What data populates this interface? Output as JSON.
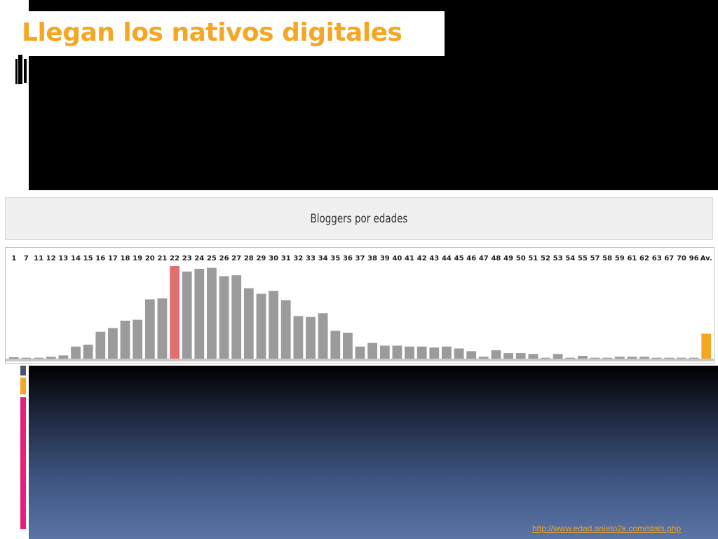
{
  "slide": {
    "title": "Llegan los nativos digitales",
    "source_link": "http://www.edad.anieto2k.com/stats.php",
    "colors": {
      "title": "#F5A623",
      "bar": "#9b9b9b",
      "highlight_bar": "#E07070",
      "average_bar": "#F5A623"
    }
  },
  "chart_data": {
    "type": "bar",
    "title": "Bloggers por edades",
    "xlabel": "",
    "ylabel": "",
    "grid": false,
    "legend": "none",
    "ylim": [
      0,
      100
    ],
    "highlight_category": "22",
    "average_category": "Av.",
    "categories": [
      "1",
      "7",
      "11",
      "12",
      "13",
      "14",
      "15",
      "16",
      "17",
      "18",
      "19",
      "20",
      "21",
      "22",
      "23",
      "24",
      "25",
      "26",
      "27",
      "28",
      "29",
      "30",
      "31",
      "32",
      "33",
      "34",
      "35",
      "36",
      "37",
      "38",
      "39",
      "40",
      "41",
      "42",
      "43",
      "44",
      "45",
      "46",
      "47",
      "48",
      "49",
      "50",
      "51",
      "52",
      "53",
      "54",
      "55",
      "57",
      "58",
      "59",
      "61",
      "62",
      "63",
      "67",
      "70",
      "96",
      "Av."
    ],
    "values": [
      1.5,
      1,
      1,
      2,
      3.5,
      13,
      15,
      29,
      33,
      41,
      42,
      64,
      65,
      100,
      94,
      97,
      98,
      89,
      90,
      76,
      70,
      73,
      63,
      46,
      45,
      49,
      30,
      28,
      13,
      17,
      14,
      14,
      13,
      13,
      12,
      13,
      11,
      8,
      2,
      9,
      6,
      6,
      5,
      1,
      5,
      1,
      3,
      1,
      1,
      2,
      2,
      2,
      1,
      1,
      1,
      1,
      27
    ]
  }
}
